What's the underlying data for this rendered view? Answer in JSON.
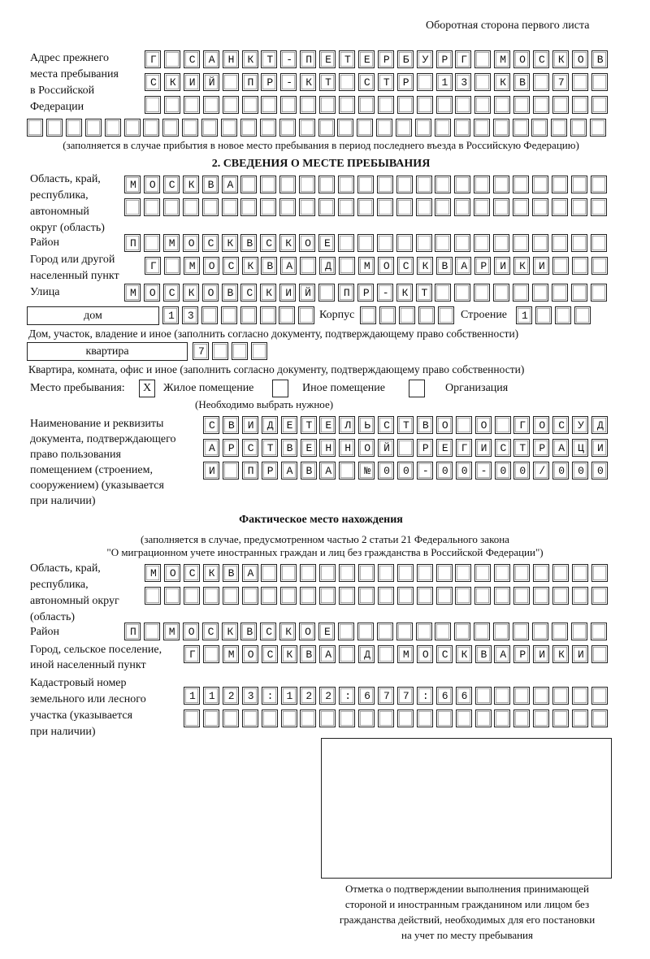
{
  "header": {
    "page_side": "Оборотная сторона первого листа"
  },
  "previous_address": {
    "label": [
      "Адрес прежнего",
      "места пребывания",
      "в Российской",
      "Федерации"
    ],
    "rows": [
      "Г САНКТ-ПЕТЕРБУРГ МОСКОВ",
      "СКИЙ ПР-КТ СТР 13 КВ 7  ",
      "                        ",
      "                              "
    ],
    "note": "(заполняется в случае прибытия в новое место пребывания в период последнего въезда в Российскую Федерацию)"
  },
  "section2": {
    "title": "2. СВЕДЕНИЯ О МЕСТЕ ПРЕБЫВАНИЯ",
    "region_label": [
      "Область, край,",
      "республика,",
      "автономный",
      "округ (область)"
    ],
    "region_rows": [
      "МОСКВА                   ",
      "                         "
    ],
    "district_label": "Район",
    "district_row": "П МОСКВСКОЕ              ",
    "city_label": [
      "Город или другой",
      "населенный пункт"
    ],
    "city_row": "Г МОСКВА Д МОСКВАРИКИ   ",
    "street_label": "Улица",
    "street_row": "МОСКОВСКИЙ ПР-КТ         ",
    "house_type": "дом",
    "house_row": "13      ",
    "korpus_label": "Корпус",
    "korpus_row": "     ",
    "building_label": "Строение",
    "building_row": "1   ",
    "house_note": "Дом, участок, владение и иное (заполнить согласно документу, подтверждающему право собственности)",
    "apt_type": "квартира",
    "apt_row": "7   ",
    "apt_note": "Квартира, комната, офис и иное (заполнить согласно документу, подтверждающему право собственности)",
    "place_label": "Место пребывания:",
    "options": [
      {
        "label": "Жилое помещение",
        "mark": "X"
      },
      {
        "label": "Иное помещение",
        "mark": ""
      },
      {
        "label": "Организация",
        "mark": ""
      }
    ],
    "choose_note": "(Необходимо выбрать нужное)",
    "doc_label": [
      "Наименование и реквизиты",
      "документа, подтверждающего",
      "право пользования",
      "помещением (строением,",
      "сооружением) (указывается",
      "при наличии)"
    ],
    "doc_rows": [
      "СВИДЕТЕЛЬСТВО О ГОСУД",
      "АРСТВЕННОЙ РЕГИСТРАЦИ",
      "И ПРАВА №00-00-00/000"
    ]
  },
  "actual": {
    "title": "Фактическое место нахождения",
    "note": [
      "(заполняется в случае, предусмотренном частью 2 статьи 21 Федерального закона",
      "\"О миграционном учете иностранных граждан и лиц без гражданства в Российской Федерации\")"
    ],
    "region_label": [
      "Область, край,",
      "республика,",
      "автономный округ",
      "(область)"
    ],
    "region_rows": [
      "МОСКВА                  ",
      "                        "
    ],
    "district_label": "Район",
    "district_row": "П МОСКВСКОЕ              ",
    "city_label": [
      "Город, сельское поселение,",
      "иной населенный пункт"
    ],
    "city_row": "Г МОСКВА Д МОСКВАРИКИ ",
    "cadastral_label": [
      "Кадастровый номер",
      "земельного или лесного",
      "участка (указывается",
      "при наличии)"
    ],
    "cadastral_rows": [
      "1123:122:677:66       ",
      "                      "
    ]
  },
  "confirmation": {
    "caption": [
      "Отметка о подтверждении выполнения принимающей",
      "стороной и иностранным гражданином или лицом без",
      "гражданства действий, необходимых для его постановки",
      "на учет по месту пребывания"
    ]
  }
}
